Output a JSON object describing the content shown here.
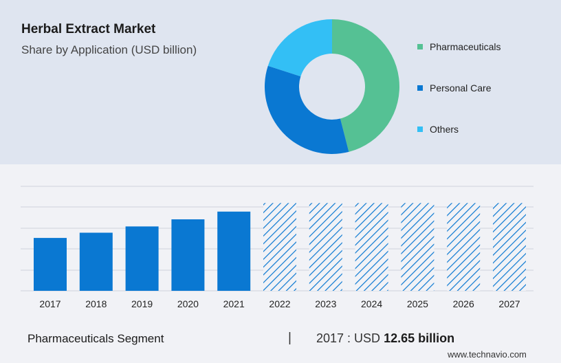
{
  "header": {
    "title": "Herbal Extract Market",
    "subtitle": "Share by Application (USD billion)"
  },
  "footer": {
    "segment_label": "Pharmaceuticals Segment",
    "separator": "|",
    "value_prefix": "2017 : USD",
    "value_amount": "12.65 billion",
    "brand": "www.technavio.com"
  },
  "colors": {
    "pharmaceuticals": "#55c194",
    "personal_care": "#0a78d2",
    "others": "#33bff5",
    "bar": "#0a78d2",
    "gridline": "#cfd3dc"
  },
  "chart_data": [
    {
      "type": "pie",
      "donut": true,
      "labels": [
        "Pharmaceuticals",
        "Personal Care",
        "Others"
      ],
      "values": [
        46,
        34,
        20
      ],
      "legend_position": "right"
    },
    {
      "type": "bar",
      "categories": [
        "2017",
        "2018",
        "2019",
        "2020",
        "2021",
        "2022",
        "2023",
        "2024",
        "2025",
        "2026",
        "2027"
      ],
      "values": [
        12.65,
        13.9,
        15.4,
        17.1,
        18.95,
        21.0,
        21.0,
        21.0,
        21.0,
        21.0,
        21.0
      ],
      "forecast_from": "2022",
      "forecast_style": "hatched",
      "ylim": [
        0,
        25
      ],
      "grid": true
    }
  ]
}
